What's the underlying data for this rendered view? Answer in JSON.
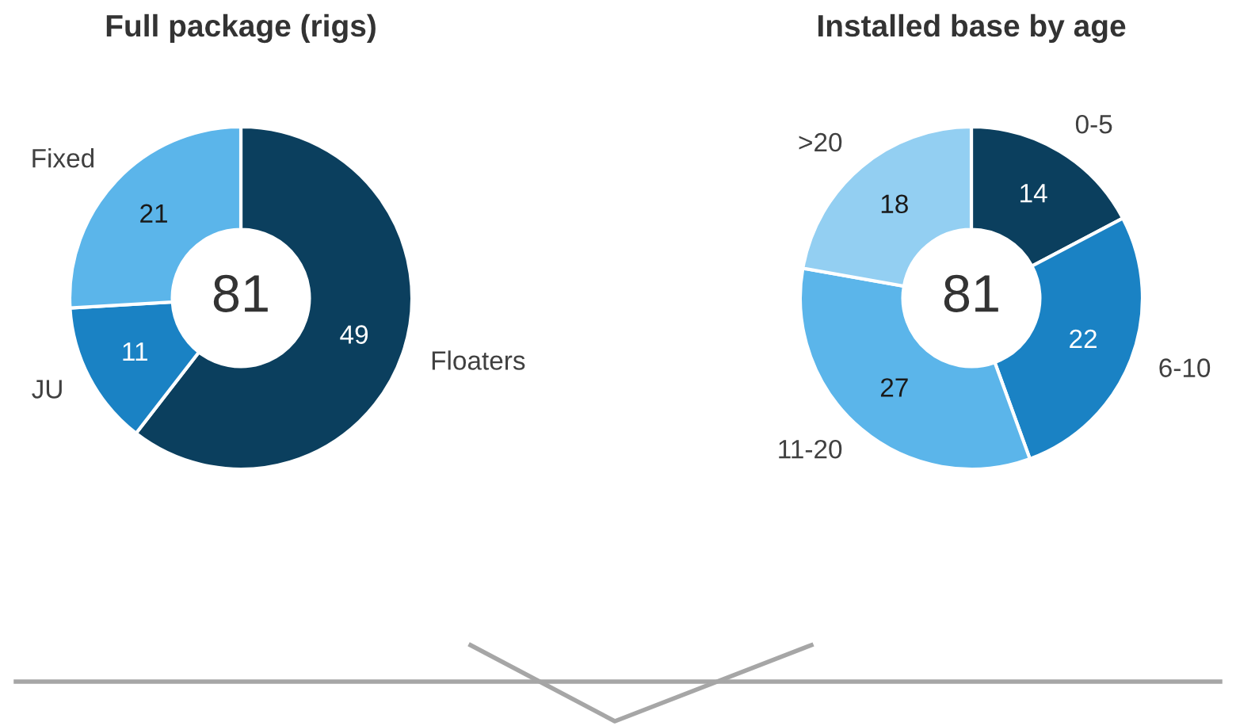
{
  "chart_data": [
    {
      "type": "donut",
      "title": "Full package (rigs)",
      "categories": [
        "Floaters",
        "JU",
        "Fixed"
      ],
      "values": [
        49,
        11,
        21
      ],
      "colors": [
        "#0b3f5e",
        "#1a82c4",
        "#5bb5ea"
      ],
      "data_labels": true,
      "annotations": [
        "81"
      ]
    },
    {
      "type": "donut",
      "title": "Installed base by age",
      "categories": [
        "0-5",
        "6-10",
        "11-20",
        ">20"
      ],
      "values": [
        14,
        22,
        27,
        18
      ],
      "colors": [
        "#0b3f5e",
        "#1a82c4",
        "#5bb5ea",
        "#93cff2"
      ],
      "data_labels": true,
      "annotations": [
        "81"
      ]
    }
  ]
}
